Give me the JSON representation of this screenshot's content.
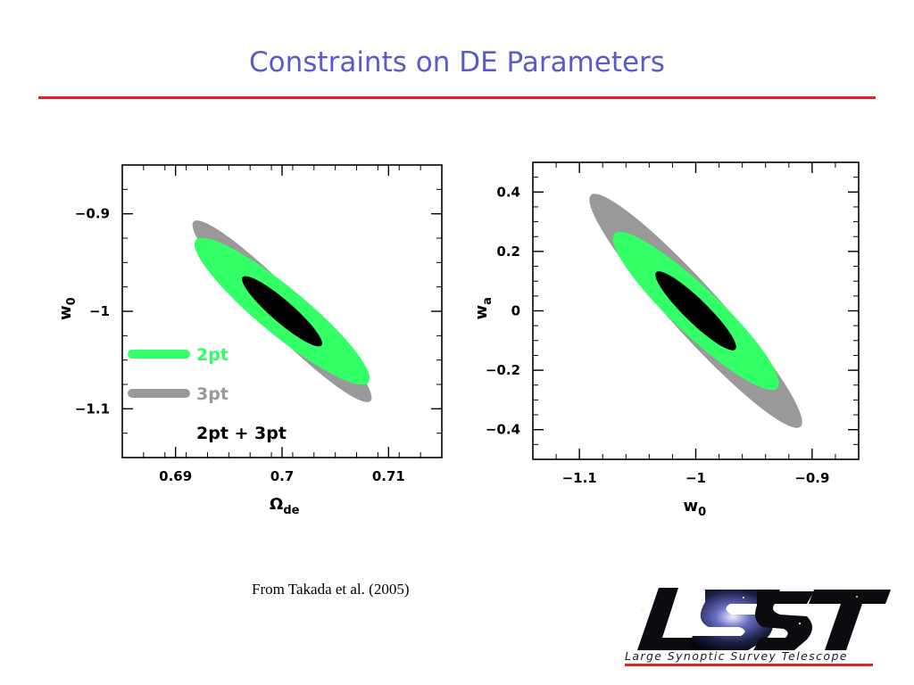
{
  "slide": {
    "title": "Constraints on DE Parameters",
    "citation": "From Takada et al. (2005)"
  },
  "logo": {
    "icon": "lsst-logo-icon",
    "wordmark": "LSST",
    "caption": "Large Synoptic Survey Telescope"
  },
  "colors": {
    "title": "#5a5ac8",
    "rule": "#d9262a",
    "2pt": "#33ff66",
    "3pt": "#999999",
    "2pt+3pt": "#1f5fe0"
  },
  "chart_data": [
    {
      "type": "contour",
      "xlabel": "Ω_de",
      "ylabel": "w_0",
      "xlim": [
        0.685,
        0.715
      ],
      "ylim": [
        -1.15,
        -0.85
      ],
      "xticks": [
        0.69,
        0.7,
        0.71
      ],
      "xtick_labels": [
        "0.69",
        "0.7",
        "0.71"
      ],
      "yticks": [
        -0.9,
        -1,
        -1.1
      ],
      "ytick_labels": [
        "−0.9",
        "−1",
        "−1.1"
      ],
      "fiducial": {
        "x": 0.7,
        "y": -1.0
      },
      "legend": {
        "placement": "lower-left",
        "entries": [
          "2pt",
          "3pt",
          "2pt + 3pt"
        ]
      },
      "ellipses": [
        {
          "name": "3pt",
          "center": [
            0.7,
            -1.0
          ],
          "x_extent": [
            0.6917,
            0.7083
          ],
          "y_extent": [
            -1.092,
            -0.908
          ]
        },
        {
          "name": "2pt",
          "center": [
            0.7,
            -1.0
          ],
          "x_extent": [
            0.6919,
            0.7081
          ],
          "y_extent": [
            -1.073,
            -0.927
          ]
        },
        {
          "name": "2pt + 3pt",
          "center": [
            0.7,
            -1.0
          ],
          "x_extent": [
            0.6963,
            0.7037
          ],
          "y_extent": [
            -1.035,
            -0.965
          ]
        }
      ]
    },
    {
      "type": "contour",
      "xlabel": "w_0",
      "ylabel": "w_a",
      "xlim": [
        -1.14,
        -0.86
      ],
      "ylim": [
        -0.5,
        0.5
      ],
      "xticks": [
        -1.1,
        -1,
        -0.9
      ],
      "xtick_labels": [
        "−1.1",
        "−1",
        "−0.9"
      ],
      "yticks": [
        0.4,
        0.2,
        0,
        -0.2,
        -0.4
      ],
      "ytick_labels": [
        "0.4",
        "0.2",
        "0",
        "−0.2",
        "−0.4"
      ],
      "fiducial": {
        "x": -1.0,
        "y": 0.0
      },
      "ellipses": [
        {
          "name": "3pt",
          "center": [
            -1.0,
            0.0
          ],
          "x_extent": [
            -1.09,
            -0.91
          ],
          "y_extent": [
            -0.39,
            0.39
          ]
        },
        {
          "name": "2pt",
          "center": [
            -1.0,
            0.0
          ],
          "x_extent": [
            -1.07,
            -0.93
          ],
          "y_extent": [
            -0.26,
            0.26
          ]
        },
        {
          "name": "2pt + 3pt",
          "center": [
            -1.0,
            0.0
          ],
          "x_extent": [
            -1.034,
            -0.966
          ],
          "y_extent": [
            -0.13,
            0.13
          ]
        }
      ]
    }
  ]
}
